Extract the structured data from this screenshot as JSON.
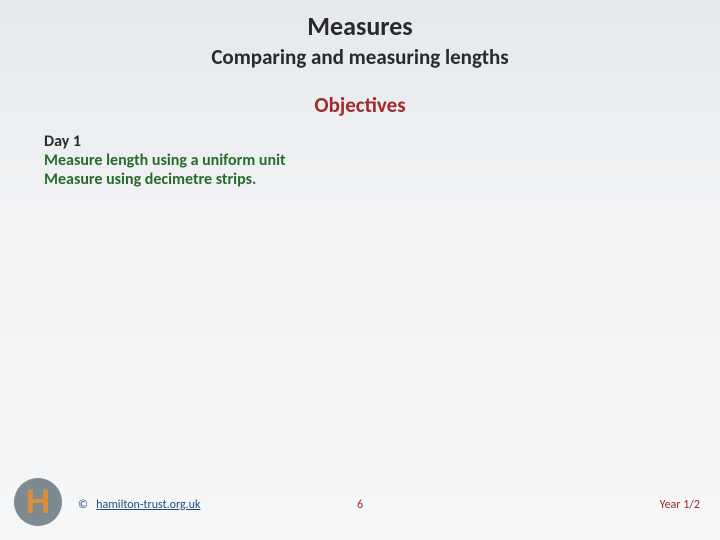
{
  "colors": {
    "title": "#2a2a2a",
    "objectives_heading": "#a02b2b",
    "objective_text": "#2a6b2a",
    "logo_bg": "#7d8a92",
    "logo_letter": "#d98f3a",
    "copyright": "#1f4e79",
    "page_num": "#a02b2b",
    "year": "#a02b2b"
  },
  "header": {
    "title": "Measures",
    "subtitle": "Comparing and measuring lengths"
  },
  "objectives": {
    "heading": "Objectives",
    "day_label": "Day 1",
    "lines": [
      "Measure length using a uniform unit",
      "Measure using decimetre strips."
    ]
  },
  "footer": {
    "logo_letter": "H",
    "copyright_symbol": "©",
    "copyright_link_text": "hamilton-trust.org.uk",
    "page_number": "6",
    "year_label": "Year 1/2"
  }
}
